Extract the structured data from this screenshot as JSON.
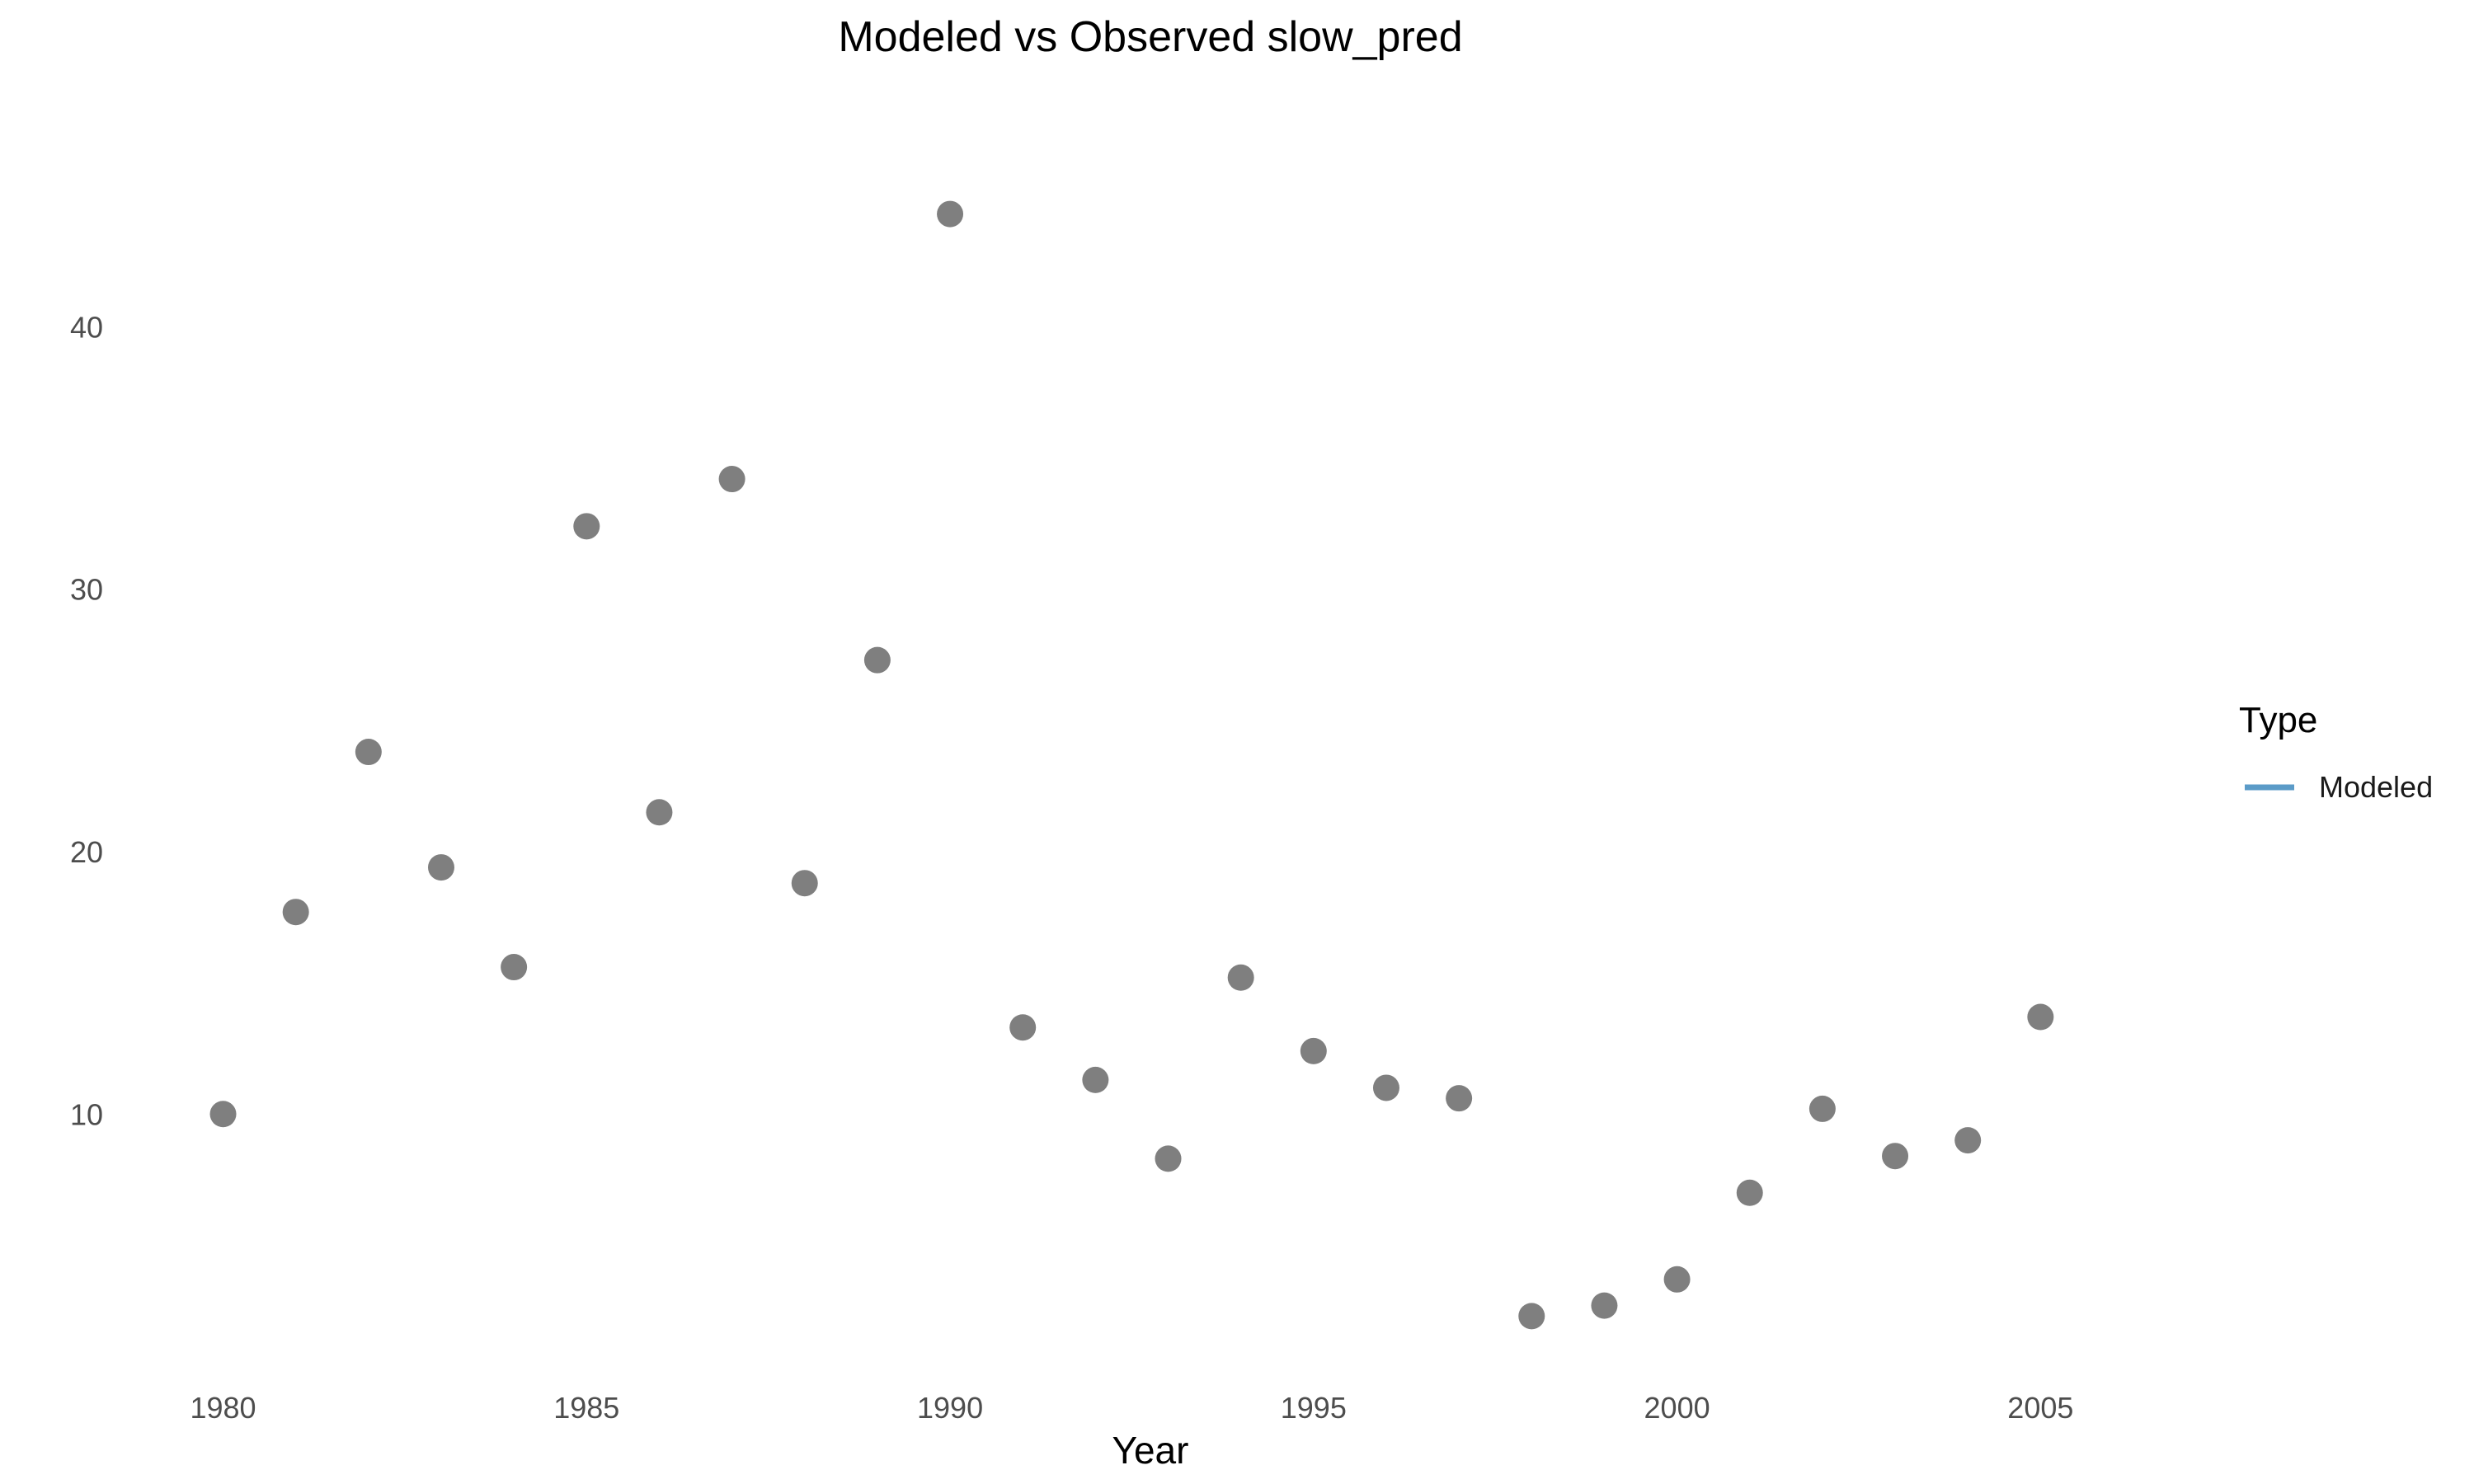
{
  "chart_data": {
    "type": "scatter",
    "title": "Modeled vs Observed slow_pred",
    "xlabel": "Year",
    "ylabel": "",
    "xlim": [
      1979.2,
      2007.9
    ],
    "ylim": [
      0.3,
      49.0
    ],
    "x_ticks": [
      1980,
      1985,
      1990,
      1995,
      2000,
      2005
    ],
    "y_ticks": [
      10,
      20,
      30,
      40
    ],
    "grid": false,
    "point_color": "#7f7f7f",
    "x": [
      1980,
      1981,
      1982,
      1983,
      1984,
      1985,
      1986,
      1987,
      1988,
      1989,
      1990,
      1991,
      1992,
      1993,
      1994,
      1995,
      1996,
      1997,
      1998,
      1999,
      2000,
      2001,
      2002,
      2003,
      2004,
      2005
    ],
    "y": [
      10.0,
      17.7,
      23.8,
      19.4,
      15.6,
      32.4,
      21.5,
      34.2,
      18.8,
      27.3,
      44.3,
      13.3,
      11.3,
      8.3,
      15.2,
      12.4,
      11.0,
      10.6,
      2.3,
      2.7,
      3.7,
      7.0,
      10.2,
      8.4,
      9.0,
      13.7
    ],
    "legend": {
      "title": "Type",
      "position": "right",
      "entries": [
        {
          "label": "Modeled",
          "color": "#5b9bc8",
          "marker": "line"
        }
      ]
    }
  }
}
